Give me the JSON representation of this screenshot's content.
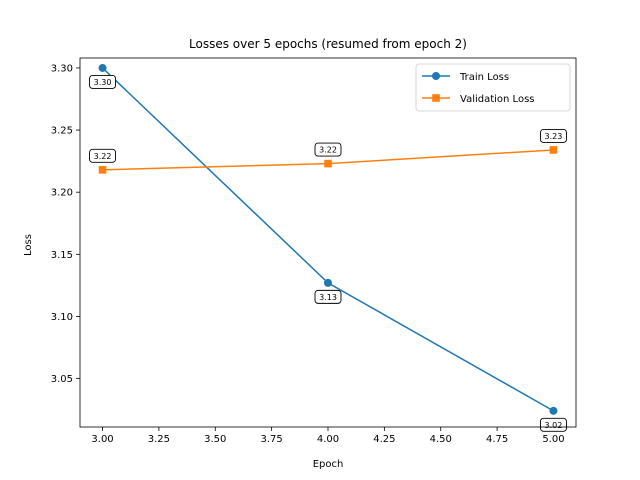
{
  "chart_data": {
    "type": "line",
    "title": "Losses over 5 epochs (resumed from epoch 2)",
    "xlabel": "Epoch",
    "ylabel": "Loss",
    "xlim": [
      2.9,
      5.1
    ],
    "ylim": [
      3.011,
      3.308
    ],
    "xticks": [
      "3.00",
      "3.25",
      "3.50",
      "3.75",
      "4.00",
      "4.25",
      "4.50",
      "4.75",
      "5.00"
    ],
    "xtick_values": [
      3.0,
      3.25,
      3.5,
      3.75,
      4.0,
      4.25,
      4.5,
      4.75,
      5.0
    ],
    "yticks": [
      "3.05",
      "3.10",
      "3.15",
      "3.20",
      "3.25",
      "3.30"
    ],
    "ytick_values": [
      3.05,
      3.1,
      3.15,
      3.2,
      3.25,
      3.3
    ],
    "grid": false,
    "legend_position": "top-right",
    "x": [
      3,
      4,
      5
    ],
    "series": [
      {
        "name": "Train Loss",
        "color": "#1f77b4",
        "marker": "circle",
        "values": [
          3.3,
          3.127,
          3.024
        ],
        "labels": [
          "3.30",
          "3.13",
          "3.02"
        ],
        "label_position": "below"
      },
      {
        "name": "Validation Loss",
        "color": "#ff7f0e",
        "marker": "square",
        "values": [
          3.218,
          3.223,
          3.234
        ],
        "labels": [
          "3.22",
          "3.22",
          "3.23"
        ],
        "label_position": "above"
      }
    ]
  }
}
